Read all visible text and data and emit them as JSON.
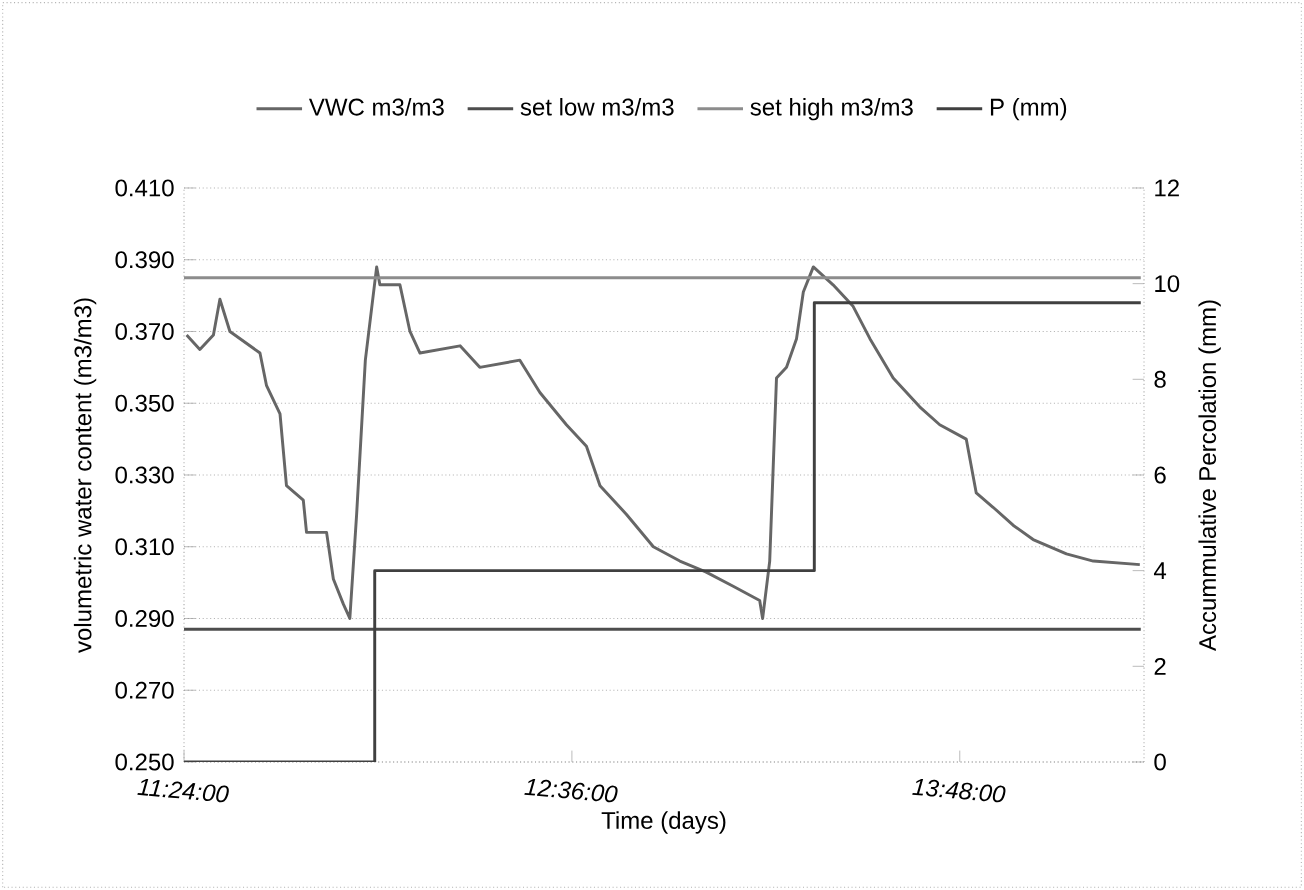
{
  "chart_data": {
    "type": "line",
    "xlabel": "Time (days)",
    "ylabel": "volumetric water content (m3/m3)",
    "y2label": "Accummulative Percolation (mm)",
    "xlim": [
      11.4,
      14.37
    ],
    "xticks": [
      {
        "value": 11.4,
        "label": "11:24:00"
      },
      {
        "value": 12.6,
        "label": "12:36:00"
      },
      {
        "value": 13.8,
        "label": "13:48:00"
      }
    ],
    "ylim": [
      0.25,
      0.41
    ],
    "yticks": [
      {
        "value": 0.25,
        "label": "0.250"
      },
      {
        "value": 0.27,
        "label": "0.270"
      },
      {
        "value": 0.29,
        "label": "0.290"
      },
      {
        "value": 0.31,
        "label": "0.310"
      },
      {
        "value": 0.33,
        "label": "0.330"
      },
      {
        "value": 0.35,
        "label": "0.350"
      },
      {
        "value": 0.37,
        "label": "0.370"
      },
      {
        "value": 0.39,
        "label": "0.390"
      },
      {
        "value": 0.41,
        "label": "0.410"
      }
    ],
    "y2lim": [
      0,
      12
    ],
    "y2ticks": [
      0,
      2,
      4,
      6,
      8,
      10,
      12
    ],
    "grid": "y",
    "legend": "top",
    "marker": "none",
    "line_style": "solid",
    "series": [
      {
        "name": "VWC m3/m3",
        "color": "#666666",
        "x": [
          11.408,
          11.449,
          11.491,
          11.511,
          11.542,
          11.635,
          11.655,
          11.697,
          11.717,
          11.769,
          11.779,
          11.841,
          11.862,
          11.893,
          11.913,
          11.934,
          11.961,
          11.996,
          12.006,
          12.068,
          12.099,
          12.13,
          12.254,
          12.315,
          12.439,
          12.501,
          12.583,
          12.645,
          12.687,
          12.769,
          12.852,
          12.934,
          13.014,
          13.099,
          13.181,
          13.19,
          13.212,
          13.233,
          13.264,
          13.295,
          13.316,
          13.347,
          13.408,
          13.47,
          13.522,
          13.594,
          13.676,
          13.738,
          13.82,
          13.851,
          13.903,
          13.965,
          14.027,
          14.13,
          14.213,
          14.357
        ],
        "values": [
          0.369,
          0.365,
          0.369,
          0.379,
          0.37,
          0.364,
          0.355,
          0.347,
          0.327,
          0.323,
          0.314,
          0.314,
          0.301,
          0.294,
          0.29,
          0.319,
          0.362,
          0.388,
          0.383,
          0.383,
          0.37,
          0.364,
          0.366,
          0.36,
          0.362,
          0.353,
          0.344,
          0.338,
          0.327,
          0.319,
          0.31,
          0.306,
          0.303,
          0.299,
          0.295,
          0.29,
          0.306,
          0.357,
          0.36,
          0.368,
          0.381,
          0.388,
          0.383,
          0.377,
          0.368,
          0.357,
          0.349,
          0.344,
          0.34,
          0.325,
          0.321,
          0.316,
          0.312,
          0.308,
          0.306,
          0.305
        ]
      },
      {
        "name": "set low m3/m3",
        "color": "#4d4d4d",
        "x": [
          11.4,
          14.36
        ],
        "values": [
          0.287,
          0.287
        ]
      },
      {
        "name": "set high m3/m3",
        "color": "#8c8c8c",
        "x": [
          11.4,
          14.36
        ],
        "values": [
          0.385,
          0.385
        ]
      },
      {
        "name": "P  (mm)",
        "color": "#404040",
        "axis": "y2",
        "x": [
          11.4,
          11.99,
          11.99,
          13.35,
          13.35,
          14.36
        ],
        "values": [
          0,
          0,
          4,
          4,
          9.6,
          9.6
        ]
      }
    ]
  }
}
